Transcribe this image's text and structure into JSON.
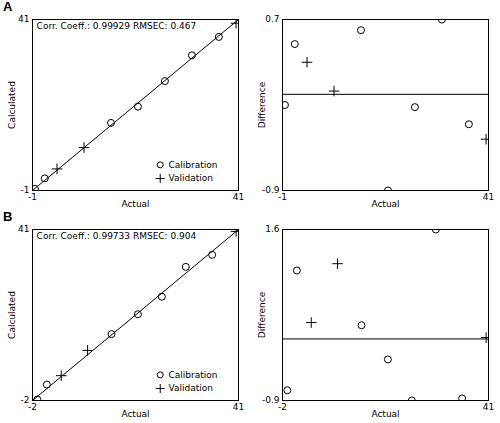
{
  "chart_data": [
    {
      "type": "scatter",
      "title": "A",
      "annotation": "Corr. Coeff.: 0.99929 RMSEC: 0.467",
      "x_label": "Actual",
      "y_label": "Calculated",
      "xlim": [
        -1,
        41
      ],
      "ylim": [
        -1,
        41
      ],
      "xticks": [
        -1,
        41
      ],
      "yticks": [
        -1,
        41
      ],
      "legend": "bottom-right",
      "series": [
        {
          "name": "Calibration",
          "marker": "circle",
          "color": "#000000",
          "x": [
            -0.5,
            1.5,
            15,
            20.5,
            26,
            31.5,
            37
          ],
          "values": [
            -0.6,
            1.97,
            15.6,
            19.6,
            25.88,
            32.2,
            36.72
          ]
        },
        {
          "name": "Validation",
          "marker": "plus",
          "color": "#000000",
          "x": [
            4,
            9.5,
            40.5
          ],
          "values": [
            4.3,
            9.53,
            40.08
          ]
        }
      ]
    },
    {
      "type": "scatter",
      "x_label": "Actual",
      "y_label": "Difference",
      "xlim": [
        -1,
        41
      ],
      "ylim": [
        -0.9,
        0.7
      ],
      "xticks": [
        -1,
        41
      ],
      "yticks": [
        -0.9,
        0.7
      ],
      "baseline": 0,
      "series": [
        {
          "marker": "circle",
          "color": "#000000",
          "x": [
            -0.5,
            1.5,
            15,
            20.5,
            26,
            31.5,
            37
          ],
          "values": [
            -0.1,
            0.47,
            0.6,
            -0.9,
            -0.12,
            0.7,
            -0.28
          ]
        },
        {
          "marker": "plus",
          "color": "#000000",
          "x": [
            4,
            9.5,
            40.5
          ],
          "values": [
            0.3,
            0.03,
            -0.42
          ]
        }
      ]
    },
    {
      "type": "scatter",
      "title": "B",
      "annotation": "Corr. Coeff.: 0.99733 RMSEC: 0.904",
      "x_label": "Actual",
      "y_label": "Calculated",
      "xlim": [
        -2,
        41
      ],
      "ylim": [
        -2,
        41
      ],
      "xticks": [
        -2,
        41
      ],
      "yticks": [
        -2,
        41
      ],
      "legend": "bottom-right",
      "series": [
        {
          "name": "Calibration",
          "marker": "circle",
          "color": "#000000",
          "x": [
            -1,
            1,
            14.5,
            20,
            25,
            30,
            35.5
          ],
          "values": [
            -1.75,
            2,
            14.7,
            19.7,
            24.1,
            31.6,
            34.63
          ]
        },
        {
          "name": "Validation",
          "marker": "plus",
          "color": "#000000",
          "x": [
            4,
            9.5,
            40.5
          ],
          "values": [
            4.24,
            10.6,
            40.52
          ]
        }
      ]
    },
    {
      "type": "scatter",
      "x_label": "Actual",
      "y_label": "Difference",
      "xlim": [
        -2,
        41
      ],
      "ylim": [
        -0.9,
        1.6
      ],
      "xticks": [
        -2,
        41
      ],
      "yticks": [
        -0.9,
        1.6
      ],
      "baseline": 0,
      "series": [
        {
          "marker": "circle",
          "color": "#000000",
          "x": [
            -1,
            1,
            14.5,
            20,
            25,
            30,
            35.5
          ],
          "values": [
            -0.75,
            1.0,
            0.2,
            -0.3,
            -0.9,
            1.6,
            -0.87
          ]
        },
        {
          "marker": "plus",
          "color": "#000000",
          "x": [
            4,
            9.5,
            40.5
          ],
          "values": [
            0.24,
            1.1,
            0.02
          ]
        }
      ]
    }
  ]
}
